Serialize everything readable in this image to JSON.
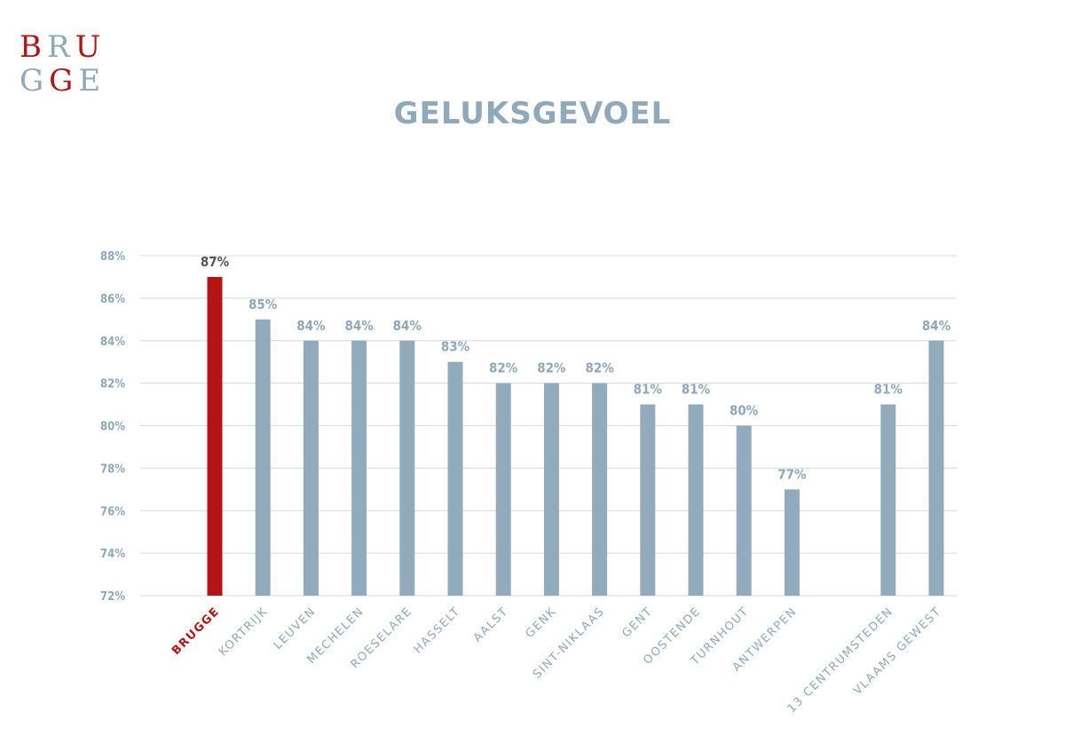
{
  "logo": {
    "row1": [
      {
        "char": "B",
        "color": "#b31516"
      },
      {
        "char": "R",
        "color": "#8fa9ba"
      },
      {
        "char": "U",
        "color": "#b31516"
      }
    ],
    "row2": [
      {
        "char": "G",
        "color": "#8fa9ba"
      },
      {
        "char": "G",
        "color": "#b31516"
      },
      {
        "char": "E",
        "color": "#8fa9ba"
      }
    ]
  },
  "colors": {
    "accent": "#b31516",
    "bar": "#91abbd",
    "axis_text": "#8fa9ba",
    "highlight_label": "#555555",
    "grid": "#d9d9d9"
  },
  "chart_data": {
    "type": "bar",
    "title": "GELUKSGEVOEL",
    "xlabel": "",
    "ylabel": "",
    "ylim": [
      72,
      88
    ],
    "yticks": [
      72,
      74,
      76,
      78,
      80,
      82,
      84,
      86,
      88
    ],
    "ytick_labels": [
      "72%",
      "74%",
      "76%",
      "78%",
      "80%",
      "82%",
      "84%",
      "86%",
      "88%"
    ],
    "grid": true,
    "legend": "none",
    "highlight_index": 0,
    "gap_after_index": 12,
    "categories": [
      "BRUGGE",
      "KORTRIJK",
      "LEUVEN",
      "MECHELEN",
      "ROESELARE",
      "HASSELT",
      "AALST",
      "GENK",
      "SINT-NIKLAAS",
      "GENT",
      "OOSTENDE",
      "TURNHOUT",
      "ANTWERPEN",
      "13 CENTRUMSTEDEN",
      "VLAAMS GEWEST"
    ],
    "values": [
      87,
      85,
      84,
      84,
      84,
      83,
      82,
      82,
      82,
      81,
      81,
      80,
      77,
      81,
      84
    ],
    "value_labels": [
      "87%",
      "85%",
      "84%",
      "84%",
      "84%",
      "83%",
      "82%",
      "82%",
      "82%",
      "81%",
      "81%",
      "80%",
      "77%",
      "81%",
      "84%"
    ]
  }
}
